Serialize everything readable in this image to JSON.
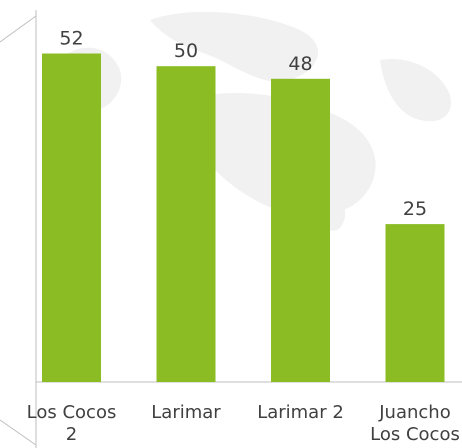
{
  "colors": {
    "bar": "#8cbc24",
    "axis": "#bfbfbf",
    "text": "#404040",
    "map_watermark": "#f1f1f1"
  },
  "chart_data": {
    "type": "bar",
    "categories": [
      [
        "Los Cocos",
        "2"
      ],
      [
        "Larimar"
      ],
      [
        "Larimar 2"
      ],
      [
        "Juancho",
        "Los Cocos"
      ]
    ],
    "values": [
      52,
      50,
      48,
      25
    ],
    "data_labels": [
      "52",
      "50",
      "48",
      "25"
    ],
    "title": "",
    "xlabel": "",
    "ylabel": "",
    "ylim": [
      0,
      60
    ],
    "grid": false,
    "legend": "none"
  }
}
